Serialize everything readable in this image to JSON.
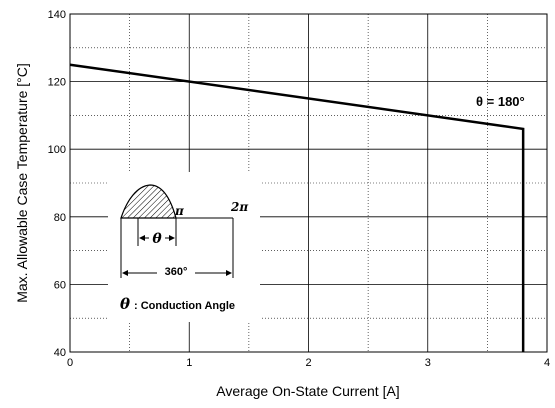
{
  "chart_data": {
    "type": "line",
    "title": "",
    "xlabel": "Average On-State Current [A]",
    "ylabel": "Max. Allowable Case Temperature [°C]",
    "xlim": [
      0,
      4
    ],
    "ylim": [
      40,
      140
    ],
    "x_ticks": [
      "0",
      "1",
      "2",
      "3",
      "4"
    ],
    "y_ticks": [
      "40",
      "60",
      "80",
      "100",
      "120",
      "140"
    ],
    "grid": true,
    "series": [
      {
        "name": "θ = 180°",
        "x": [
          0,
          3.8,
          3.8
        ],
        "y": [
          125,
          106,
          40
        ]
      }
    ],
    "annotations": {
      "curve_label": "θ = 180°",
      "pi_label": "π",
      "two_pi_label": "2π",
      "theta_label": "θ",
      "period_label": "360°",
      "legend_symbol": "θ",
      "legend_text": ": Conduction Angle"
    }
  }
}
